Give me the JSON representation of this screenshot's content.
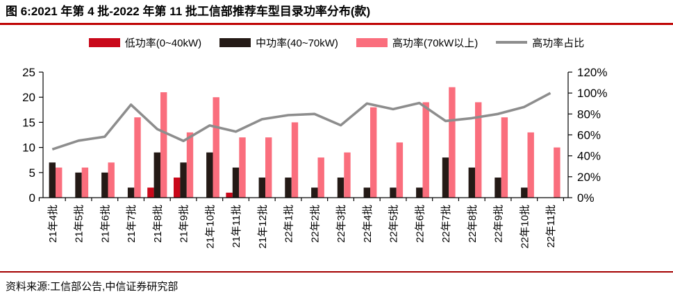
{
  "header": {
    "title": "图 6:2021 年第 4 批-2022 年第 11 批工信部推荐车型目录功率分布(款)"
  },
  "footer": {
    "source": "资料来源:工信部公告,中信证券研究部"
  },
  "colors": {
    "title_rule": "#BE0000",
    "source_rule": "#A40000",
    "low_power": "#C9081A",
    "mid_power": "#241A16",
    "high_power": "#FA6E7D",
    "ratio_line": "#8D8D8D",
    "axis": "#000000"
  },
  "chart_data": {
    "type": "bar",
    "title": "2021 年第 4 批-2022 年第 11 批工信部推荐车型目录功率分布(款)",
    "categories": [
      "21年4批",
      "21年5批",
      "21年6批",
      "21年7批",
      "21年8批",
      "21年9批",
      "21年10批",
      "21年11批",
      "21年12批",
      "22年1批",
      "22年2批",
      "22年3批",
      "22年4批",
      "22年5批",
      "22年6批",
      "22年7批",
      "22年8批",
      "22年9批",
      "22年10批",
      "22年11批"
    ],
    "series": [
      {
        "key": "low",
        "name": "低功率(0~40kW)",
        "color": "#C9081A",
        "values": [
          0,
          0,
          0,
          0,
          2,
          4,
          0,
          1,
          0,
          0,
          0,
          0,
          0,
          0,
          0,
          0,
          0,
          0,
          0,
          0
        ]
      },
      {
        "key": "mid",
        "name": "中功率(40~70kW)",
        "color": "#241A16",
        "values": [
          7,
          5,
          5,
          2,
          9,
          7,
          9,
          6,
          4,
          4,
          2,
          4,
          2,
          2,
          2,
          8,
          6,
          4,
          2,
          0
        ]
      },
      {
        "key": "high",
        "name": "高功率(70kW以上)",
        "color": "#FA6E7D",
        "values": [
          6,
          6,
          7,
          16,
          21,
          13,
          20,
          12,
          12,
          15,
          8,
          9,
          18,
          11,
          19,
          22,
          19,
          16,
          13,
          10
        ]
      }
    ],
    "line": {
      "key": "ratio",
      "name": "高功率占比",
      "color": "#8D8D8D",
      "values": [
        46.2,
        54.5,
        58.3,
        88.9,
        65.6,
        54.2,
        69.0,
        63.2,
        75.0,
        78.9,
        80.0,
        69.2,
        90.0,
        84.6,
        90.5,
        73.3,
        76.0,
        80.0,
        86.7,
        100.0
      ]
    },
    "left_axis": {
      "min": 0,
      "max": 25,
      "step": 5,
      "ticks": [
        "0",
        "5",
        "10",
        "15",
        "20",
        "25"
      ]
    },
    "right_axis": {
      "min": 0,
      "max": 120,
      "step": 20,
      "suffix": "%",
      "ticks": [
        "0%",
        "20%",
        "40%",
        "60%",
        "80%",
        "100%",
        "120%"
      ]
    },
    "legend_position": "top",
    "grid": false,
    "xlabel": "",
    "ylabel": ""
  }
}
